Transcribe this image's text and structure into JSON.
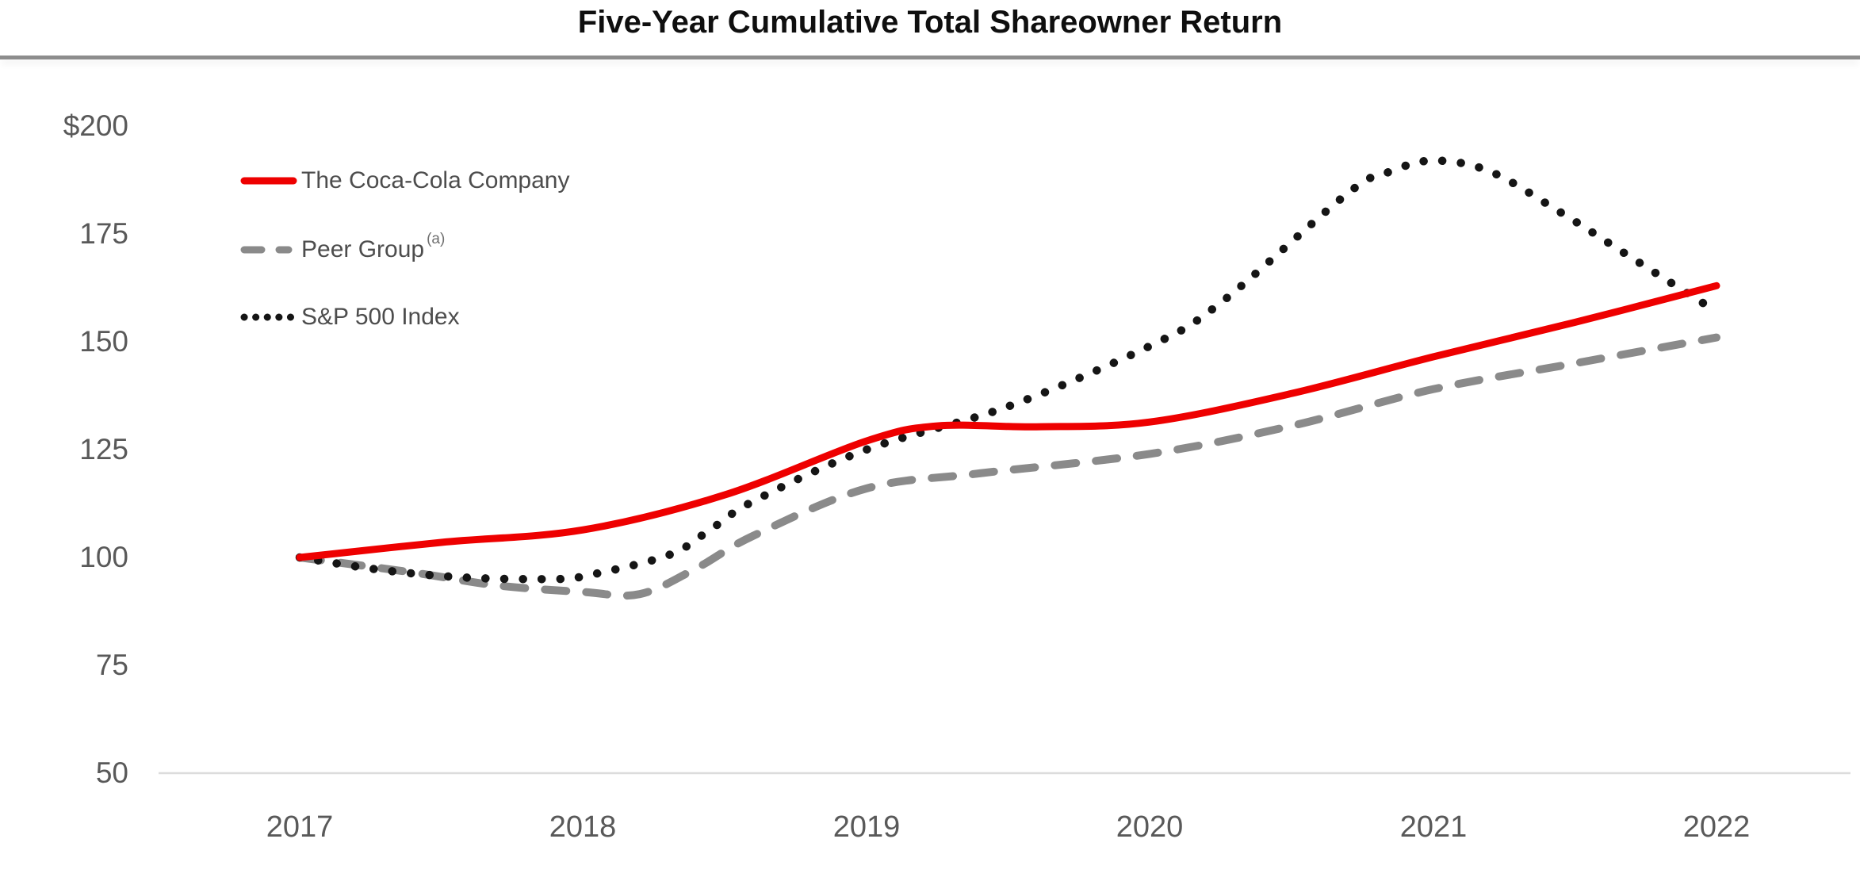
{
  "title": "Five-Year Cumulative Total Shareowner Return",
  "colors": {
    "coca_cola_red": "#ee0000",
    "peer_group_gray": "#8a8a8a",
    "sp500_black": "#151515",
    "axis_text": "#595959",
    "legend_text": "#4d4d4d",
    "baseline": "#dcdcdc",
    "title_rule": "#8d8d8d"
  },
  "legend": {
    "items": [
      {
        "label": "The Coca-Cola Company",
        "sup": "",
        "style": "solid",
        "color": "#ee0000"
      },
      {
        "label": "Peer Group",
        "sup": "(a)",
        "style": "dashed",
        "color": "#8a8a8a"
      },
      {
        "label": "S&P 500 Index",
        "sup": "",
        "style": "dotted",
        "color": "#151515"
      }
    ]
  },
  "chart_data": {
    "type": "line",
    "title": "Five-Year Cumulative Total Shareowner Return",
    "categories": [
      "2017",
      "2018",
      "2019",
      "2020",
      "2021",
      "2022"
    ],
    "y_ticks": [
      "$200",
      "175",
      "150",
      "125",
      "100",
      "75",
      "50"
    ],
    "y_tick_values": [
      200,
      175,
      150,
      125,
      100,
      75,
      50
    ],
    "ylim": [
      50,
      210
    ],
    "grid": false,
    "legend_position": "upper-left",
    "base_index_value": 100,
    "series": [
      {
        "name": "The Coca-Cola Company",
        "line_style": "solid",
        "color": "#ee0000",
        "values": [
          100,
          106,
          127,
          131,
          146,
          163
        ],
        "samples": [
          [
            2017,
            100
          ],
          [
            2017.5,
            103.5
          ],
          [
            2018,
            106.4
          ],
          [
            2018.5,
            114.5
          ],
          [
            2019,
            127
          ],
          [
            2019.25,
            130.5
          ],
          [
            2019.6,
            130.3
          ],
          [
            2020,
            131.4
          ],
          [
            2020.5,
            138
          ],
          [
            2021,
            146.5
          ],
          [
            2021.5,
            154.5
          ],
          [
            2022,
            163
          ]
        ]
      },
      {
        "name": "Peer Group (a)",
        "line_style": "dashed",
        "color": "#8a8a8a",
        "values": [
          100,
          92,
          116,
          124,
          139,
          151
        ],
        "samples": [
          [
            2017,
            100
          ],
          [
            2017.4,
            96.5
          ],
          [
            2017.7,
            93.5
          ],
          [
            2018,
            92
          ],
          [
            2018.2,
            91.5
          ],
          [
            2018.4,
            97.5
          ],
          [
            2018.6,
            105
          ],
          [
            2019,
            116
          ],
          [
            2019.4,
            119.5
          ],
          [
            2020,
            124
          ],
          [
            2020.5,
            130.5
          ],
          [
            2021,
            139
          ],
          [
            2021.5,
            145
          ],
          [
            2022,
            151
          ]
        ]
      },
      {
        "name": "S&P 500 Index",
        "line_style": "dotted",
        "color": "#151515",
        "values": [
          100,
          96,
          125,
          149,
          192,
          157
        ],
        "samples": [
          [
            2017,
            100
          ],
          [
            2017.3,
            97
          ],
          [
            2017.6,
            95.3
          ],
          [
            2017.9,
            95
          ],
          [
            2018,
            95.6
          ],
          [
            2018.3,
            100.5
          ],
          [
            2018.45,
            106.5
          ],
          [
            2018.6,
            113
          ],
          [
            2019,
            125
          ],
          [
            2019.5,
            135
          ],
          [
            2020,
            149
          ],
          [
            2020.25,
            159
          ],
          [
            2020.7,
            184.5
          ],
          [
            2020.85,
            189.5
          ],
          [
            2021,
            192
          ],
          [
            2021.2,
            189.5
          ],
          [
            2021.45,
            180
          ],
          [
            2021.7,
            169.5
          ],
          [
            2022,
            157
          ]
        ]
      }
    ]
  }
}
